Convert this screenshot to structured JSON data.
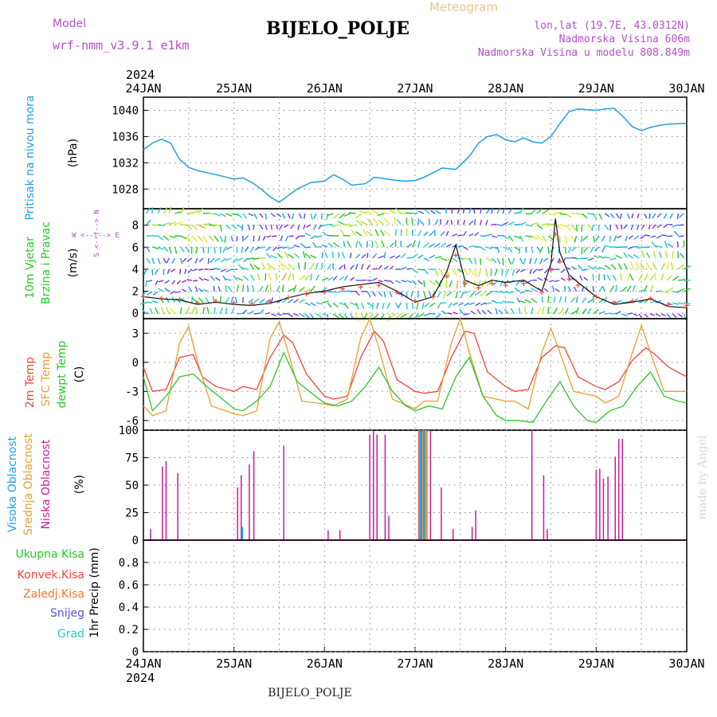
{
  "header": {
    "model_label": "Model",
    "model_name": "wrf-nmm_v3.9.1 e1km",
    "station": "BIJELO_POLJE",
    "meteogram_label": "Meteogram",
    "lonlat": "lon,lat (19.7E, 43.0312N)",
    "altitude": "Nadmorska Visina 606m",
    "model_altitude": "Nadmorska Visina u modelu 808.849m",
    "footer_station": "BIJELO_POLJE",
    "watermark": "made by Angel",
    "year_top": "2024",
    "year_bottom": "2024"
  },
  "colors": {
    "pressure": "#1ea0e6",
    "temp2m": "#f0463c",
    "sfc_temp": "#e6a030",
    "dewpoint": "#28c828",
    "high_cloud": "#1ea0e6",
    "mid_cloud": "#e6a030",
    "low_cloud": "#c81e96",
    "total_precip": "#28c828",
    "conv_precip": "#f0463c",
    "frozen_precip": "#f07828",
    "snow": "#5050dc",
    "hail": "#28c8c8",
    "wind_label": "#28c828",
    "wind_dir": "#b450c8"
  },
  "x_axis": {
    "ticks": [
      "24JAN",
      "25JAN",
      "26JAN",
      "27JAN",
      "28JAN",
      "29JAN",
      "30JAN"
    ]
  },
  "chart_data": [
    {
      "type": "line",
      "name": "pressure",
      "ylabel_line1": "Pritisak na nivou mora",
      "unit": "(hPa)",
      "ylim": [
        1025,
        1042
      ],
      "yticks": [
        "1028",
        "1032",
        "1036",
        "1040"
      ],
      "ytick_values": [
        1028,
        1032,
        1036,
        1040
      ],
      "grid": true,
      "x_days": [
        0,
        0.1,
        0.2,
        0.3,
        0.4,
        0.5,
        0.6,
        0.8,
        1.0,
        1.1,
        1.2,
        1.3,
        1.4,
        1.5,
        1.6,
        1.7,
        1.85,
        2.0,
        2.1,
        2.2,
        2.3,
        2.45,
        2.55,
        2.7,
        2.8,
        2.9,
        3.0,
        3.1,
        3.2,
        3.3,
        3.45,
        3.6,
        3.7,
        3.8,
        3.9,
        4.0,
        4.1,
        4.2,
        4.3,
        4.4,
        4.5,
        4.6,
        4.7,
        4.8,
        4.9,
        5.0,
        5.1,
        5.2,
        5.3,
        5.4,
        5.5,
        5.6,
        5.7,
        5.8,
        6.0
      ],
      "y": [
        1034.0,
        1035.0,
        1035.6,
        1035.0,
        1032.5,
        1031.3,
        1030.8,
        1030.2,
        1029.5,
        1029.7,
        1029.0,
        1028.0,
        1026.8,
        1026.0,
        1027.0,
        1028.0,
        1029.0,
        1029.2,
        1030.2,
        1029.5,
        1028.6,
        1028.8,
        1029.8,
        1029.5,
        1029.3,
        1029.2,
        1029.3,
        1029.8,
        1030.5,
        1031.2,
        1031.0,
        1033.0,
        1035.0,
        1036.0,
        1036.3,
        1035.5,
        1035.2,
        1035.8,
        1035.2,
        1035.0,
        1036.0,
        1038.0,
        1039.8,
        1040.2,
        1040.1,
        1040.0,
        1040.2,
        1040.3,
        1039.0,
        1037.5,
        1036.9,
        1037.4,
        1037.7,
        1037.9,
        1038.0
      ]
    },
    {
      "type": "barbs",
      "name": "wind",
      "ylabel_line1": "10m Vjetar",
      "ylabel_line2": "Brzina i Pravac",
      "unit": "(m/s)",
      "direction_hint": "W <--|--> E",
      "direction_hint_v": "S <--|--> N",
      "ylim": [
        -0.5,
        9.5
      ],
      "yticks": [
        "0",
        "2",
        "4",
        "6",
        "8"
      ],
      "ytick_values": [
        0,
        2,
        4,
        6,
        8
      ],
      "grid": true,
      "speed_x_days": [
        0,
        0.2,
        0.4,
        0.6,
        0.8,
        1.0,
        1.2,
        1.4,
        1.6,
        1.8,
        2.0,
        2.2,
        2.4,
        2.6,
        2.8,
        3.0,
        3.2,
        3.35,
        3.45,
        3.55,
        3.7,
        3.85,
        4.0,
        4.2,
        4.4,
        4.5,
        4.55,
        4.6,
        4.7,
        4.8,
        5.0,
        5.2,
        5.4,
        5.6,
        5.8,
        6.0
      ],
      "speed": [
        1.5,
        1.3,
        1.2,
        0.8,
        1.0,
        0.8,
        0.7,
        0.9,
        1.4,
        1.8,
        2.0,
        2.4,
        2.6,
        2.8,
        2.0,
        1.0,
        1.5,
        3.8,
        6.2,
        3.0,
        2.5,
        3.0,
        2.8,
        3.0,
        2.0,
        4.5,
        8.6,
        5.5,
        3.5,
        2.8,
        1.5,
        0.8,
        1.0,
        1.3,
        0.6,
        0.5
      ]
    },
    {
      "type": "line",
      "name": "temperature",
      "ylabel_line1": "2m Temp",
      "ylabel_line2": "SFC Temp",
      "ylabel_line3": "dewpt Temp",
      "unit": "(C)",
      "ylim": [
        -7,
        4.5
      ],
      "yticks": [
        "3",
        "0",
        "-3",
        "-6"
      ],
      "ytick_values": [
        3,
        0,
        -3,
        -6
      ],
      "grid": true,
      "series": [
        {
          "name": "2m Temp",
          "x_days": [
            0,
            0.1,
            0.25,
            0.4,
            0.55,
            0.65,
            0.8,
            1.0,
            1.1,
            1.25,
            1.4,
            1.55,
            1.65,
            1.8,
            2.0,
            2.1,
            2.25,
            2.4,
            2.55,
            2.65,
            2.8,
            3.0,
            3.1,
            3.25,
            3.4,
            3.55,
            3.65,
            3.8,
            4.0,
            4.1,
            4.25,
            4.4,
            4.55,
            4.65,
            4.8,
            5.0,
            5.1,
            5.25,
            5.4,
            5.55,
            5.65,
            5.8,
            6.0
          ],
          "y": [
            -0.5,
            -3.0,
            -2.8,
            0.5,
            0.8,
            -1.5,
            -2.5,
            -3.0,
            -2.5,
            -2.8,
            0.5,
            2.8,
            2.0,
            -1.2,
            -3.5,
            -3.8,
            -3.5,
            0.5,
            3.2,
            2.2,
            -1.8,
            -3.0,
            -3.2,
            -3.0,
            0.5,
            3.2,
            3.0,
            -1.0,
            -2.5,
            -3.0,
            -2.8,
            0.5,
            1.7,
            1.5,
            -1.5,
            -2.5,
            -2.8,
            -2.0,
            0.2,
            1.5,
            0.8,
            -0.5,
            -1.5
          ]
        },
        {
          "name": "SFC Temp",
          "x_days": [
            0,
            0.1,
            0.25,
            0.4,
            0.5,
            0.6,
            0.75,
            1.0,
            1.1,
            1.25,
            1.4,
            1.5,
            1.6,
            1.75,
            2.0,
            2.1,
            2.25,
            2.4,
            2.5,
            2.6,
            2.75,
            3.0,
            3.1,
            3.25,
            3.4,
            3.5,
            3.6,
            3.75,
            4.0,
            4.1,
            4.25,
            4.4,
            4.5,
            4.6,
            4.75,
            5.0,
            5.1,
            5.25,
            5.4,
            5.5,
            5.6,
            5.75,
            6.0
          ],
          "y": [
            -4.5,
            -5.5,
            -5.0,
            2.0,
            3.7,
            0.0,
            -4.5,
            -5.3,
            -5.5,
            -5.0,
            2.5,
            4.2,
            1.0,
            -4.0,
            -4.3,
            -4.5,
            -3.8,
            2.5,
            4.5,
            1.5,
            -3.8,
            -4.8,
            -4.0,
            -4.0,
            2.0,
            4.5,
            1.0,
            -3.5,
            -4.0,
            -4.0,
            -4.8,
            1.0,
            3.5,
            1.0,
            -3.0,
            -3.5,
            -4.2,
            -3.5,
            1.0,
            3.8,
            1.0,
            -3.0,
            -3.0
          ]
        },
        {
          "name": "dewpt Temp",
          "x_days": [
            0,
            0.1,
            0.25,
            0.4,
            0.55,
            0.7,
            0.9,
            1.0,
            1.1,
            1.25,
            1.4,
            1.55,
            1.7,
            1.9,
            2.0,
            2.15,
            2.3,
            2.45,
            2.6,
            2.75,
            2.9,
            3.0,
            3.15,
            3.3,
            3.45,
            3.6,
            3.75,
            3.9,
            4.0,
            4.15,
            4.3,
            4.45,
            4.6,
            4.75,
            4.9,
            5.0,
            5.15,
            5.3,
            5.45,
            5.6,
            5.75,
            5.9,
            6.0
          ],
          "y": [
            -1.5,
            -5.0,
            -3.5,
            -1.5,
            -1.2,
            -2.5,
            -4.0,
            -4.8,
            -5.0,
            -4.0,
            -2.5,
            1.0,
            -2.0,
            -3.5,
            -4.2,
            -4.5,
            -4.0,
            -2.5,
            -0.5,
            -3.0,
            -4.5,
            -5.0,
            -4.5,
            -4.8,
            -1.5,
            0.5,
            -3.5,
            -5.5,
            -6.0,
            -6.0,
            -6.2,
            -4.0,
            -2.0,
            -4.5,
            -6.0,
            -6.2,
            -5.0,
            -4.5,
            -2.5,
            -1.0,
            -3.5,
            -4.0,
            -4.2
          ]
        }
      ]
    },
    {
      "type": "bar",
      "name": "cloud_cover",
      "ylabel_line1": "Visoka Oblacnost",
      "ylabel_line2": "Srednja Oblacnost",
      "ylabel_line3": "Niska Oblacnost",
      "unit": "(%)",
      "ylim": [
        0,
        100
      ],
      "yticks": [
        "0",
        "25",
        "50",
        "75",
        "100"
      ],
      "ytick_values": [
        0,
        25,
        50,
        75,
        100
      ],
      "grid": true,
      "series": [
        {
          "name": "Niska Oblacnost",
          "x_days": [
            0.08,
            0.21,
            0.25,
            0.38,
            0.42,
            1.04,
            1.08,
            1.17,
            1.22,
            1.55,
            2.04,
            2.17,
            2.5,
            2.54,
            2.58,
            2.67,
            2.71,
            3.04,
            3.08,
            3.13,
            3.17,
            3.29,
            3.42,
            3.5,
            3.63,
            3.67,
            4.29,
            4.42,
            4.46,
            5.0,
            5.04,
            5.08,
            5.13,
            5.21,
            5.25,
            5.29
          ],
          "values": [
            10,
            67,
            72,
            61,
            2,
            48,
            59,
            69,
            81,
            86,
            9,
            9,
            96,
            100,
            96,
            96,
            22,
            100,
            100,
            100,
            100,
            48,
            10,
            7,
            12,
            27,
            100,
            59,
            10,
            64,
            65,
            56,
            58,
            76,
            92,
            92
          ]
        },
        {
          "name": "Srednja Oblacnost",
          "x_days": [
            3.05,
            3.09,
            3.12
          ],
          "values": [
            100,
            100,
            100
          ]
        },
        {
          "name": "Visoka Oblacnost",
          "x_days": [
            0.99,
            1.09,
            3.06,
            3.1
          ],
          "values": [
            8,
            12,
            100,
            100
          ]
        }
      ]
    },
    {
      "type": "bar",
      "name": "precipitation",
      "ylabel_line1": "1hr Precip (mm)",
      "ylim": [
        0,
        1
      ],
      "yticks": [
        "0",
        "0.2",
        "0.4",
        "0.6",
        "0.8"
      ],
      "ytick_values": [
        0,
        0.2,
        0.4,
        0.6,
        0.8
      ],
      "grid": true,
      "legend": [
        "Ukupna Kisa",
        "Konvek.Kisa",
        "Zaledj.Kisa",
        "Snijeg",
        "Grad"
      ],
      "values": []
    }
  ]
}
